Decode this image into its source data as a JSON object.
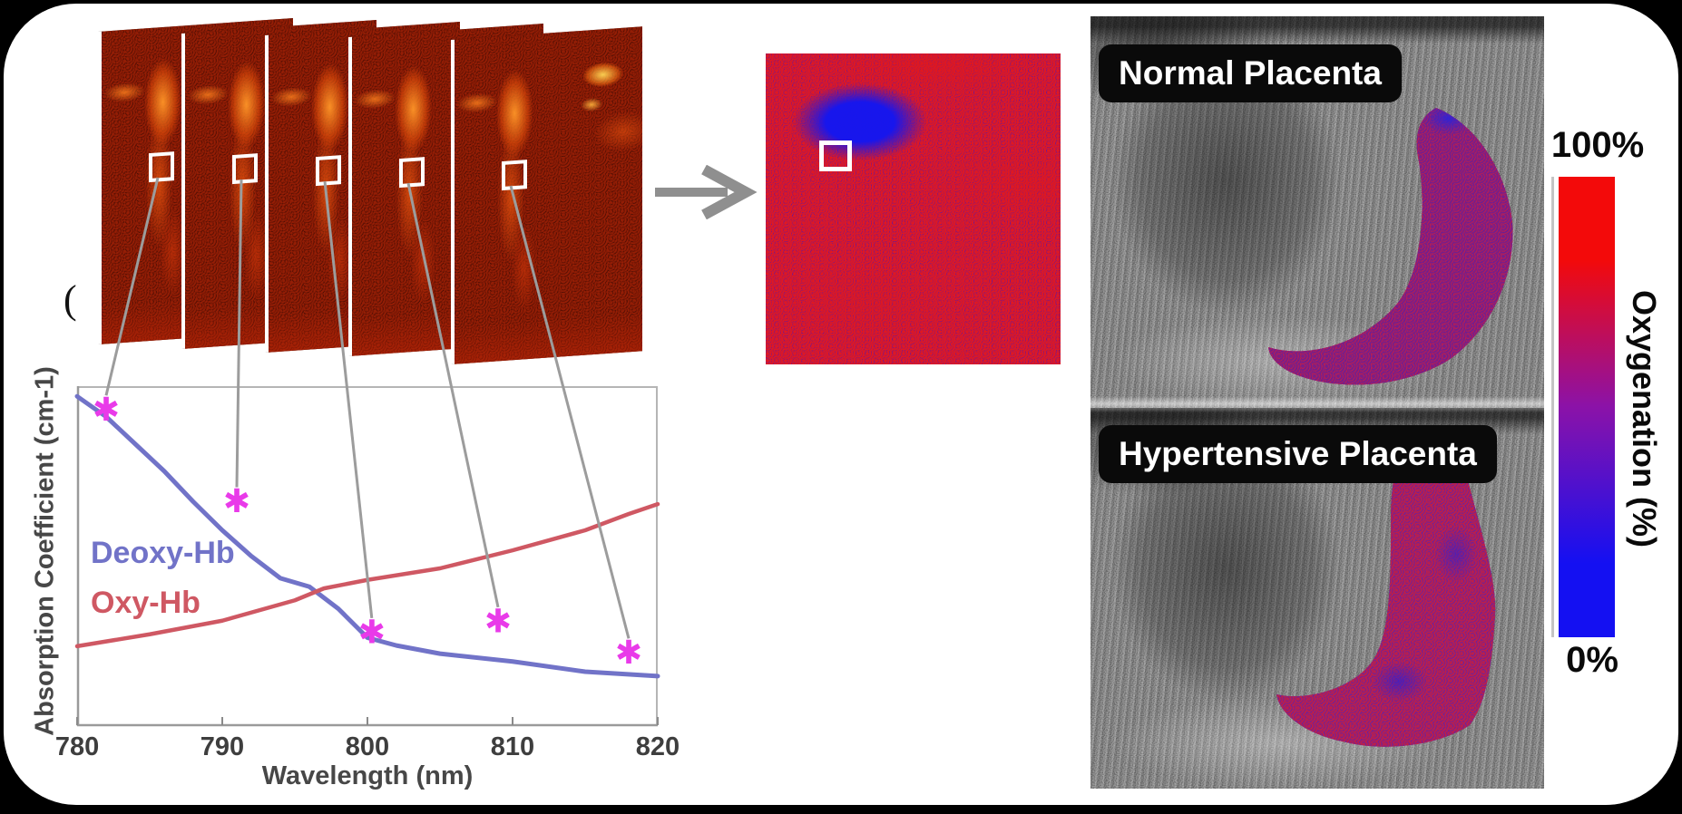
{
  "stray_mark": "(",
  "pa_stack": {
    "frame_count": 5,
    "roi_color": "#ffffff"
  },
  "chart_data": {
    "type": "line",
    "title": "",
    "xlabel": "Wavelength (nm)",
    "ylabel": "Absorption Coefficient (cm-1)",
    "xlim": [
      780,
      820
    ],
    "x_ticks": [
      780,
      790,
      800,
      810,
      820
    ],
    "y_axis": "unlabeled (relative absorption, fraction of plot height)",
    "grid": false,
    "legend_position": "inside-left-middle",
    "series": [
      {
        "name": "Deoxy-Hb",
        "color": "#7173c8",
        "x": [
          780,
          782,
          784,
          786,
          788,
          790,
          792,
          794,
          796,
          798,
          800,
          802,
          805,
          810,
          815,
          820
        ],
        "y_frac": [
          0.97,
          0.91,
          0.83,
          0.75,
          0.66,
          0.576,
          0.5,
          0.435,
          0.41,
          0.345,
          0.26,
          0.237,
          0.213,
          0.19,
          0.16,
          0.147
        ]
      },
      {
        "name": "Oxy-Hb",
        "color": "#cf5863",
        "x": [
          780,
          785,
          790,
          795,
          797,
          800,
          805,
          810,
          815,
          818,
          820
        ],
        "y_frac": [
          0.235,
          0.27,
          0.31,
          0.37,
          0.405,
          0.43,
          0.464,
          0.517,
          0.576,
          0.624,
          0.653
        ]
      }
    ],
    "markers": {
      "symbol": "✱",
      "color": "#e93ae9",
      "points": [
        {
          "x": 782,
          "y_frac": 0.93
        },
        {
          "x": 791,
          "y_frac": 0.66
        },
        {
          "x": 800.3,
          "y_frac": 0.275
        },
        {
          "x": 809,
          "y_frac": 0.307
        },
        {
          "x": 818,
          "y_frac": 0.215
        }
      ]
    }
  },
  "arrow_color": "#8f8f8f",
  "oxymap": {
    "base_color": "#1513ea",
    "speckle_color": "#e41b1b",
    "roi_color": "#ffffff"
  },
  "ultrasound": {
    "normal_label": "Normal Placenta",
    "hypertensive_label": "Hypertensive Placenta"
  },
  "colorbar": {
    "max_label": "100%",
    "min_label": "0%",
    "axis_label": "Oxygenation (%)",
    "gradient_top": "#f30a0a",
    "gradient_mid": "#8b12a8",
    "gradient_bottom": "#1410f2"
  }
}
